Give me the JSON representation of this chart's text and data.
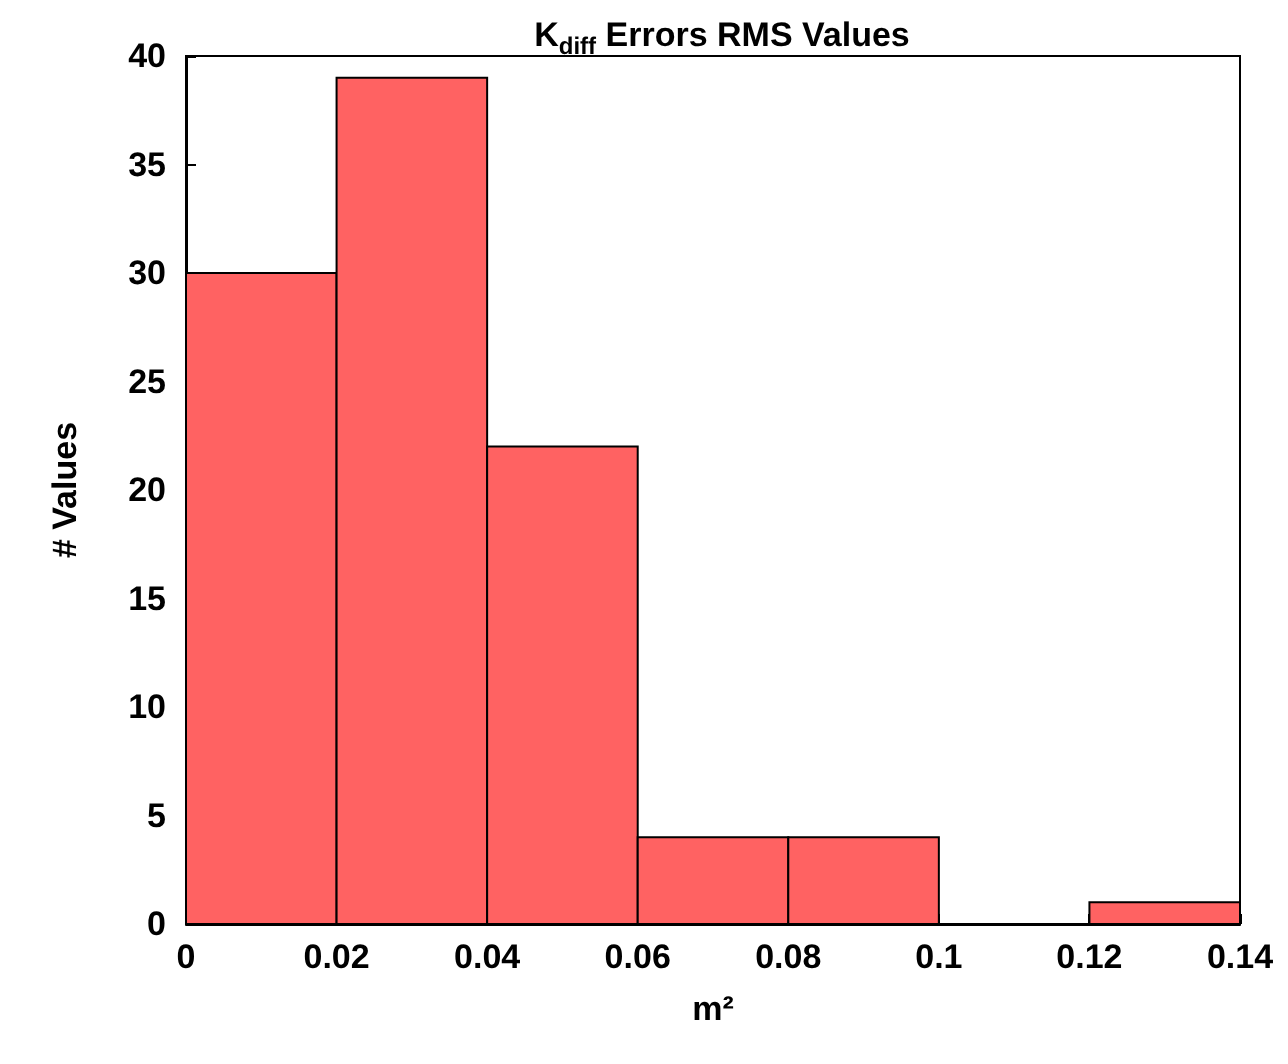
{
  "chart_data": {
    "type": "histogram",
    "title": "K$_{diff}$ Errors RMS Values",
    "xlabel": "m²",
    "ylabel": "# Values",
    "bins": [
      0,
      0.02,
      0.04,
      0.06,
      0.08,
      0.1,
      0.12,
      0.14
    ],
    "values": [
      30,
      39,
      22,
      4,
      4,
      0,
      1
    ],
    "color": "#ff6262",
    "xlim": [
      0,
      0.14
    ],
    "xticks": [
      0,
      0.02,
      0.04,
      0.06,
      0.08,
      0.1,
      0.12,
      0.14
    ],
    "ylim": [
      0,
      40
    ],
    "yticks": [
      0,
      5,
      10,
      15,
      20,
      25,
      30,
      35,
      40
    ]
  }
}
